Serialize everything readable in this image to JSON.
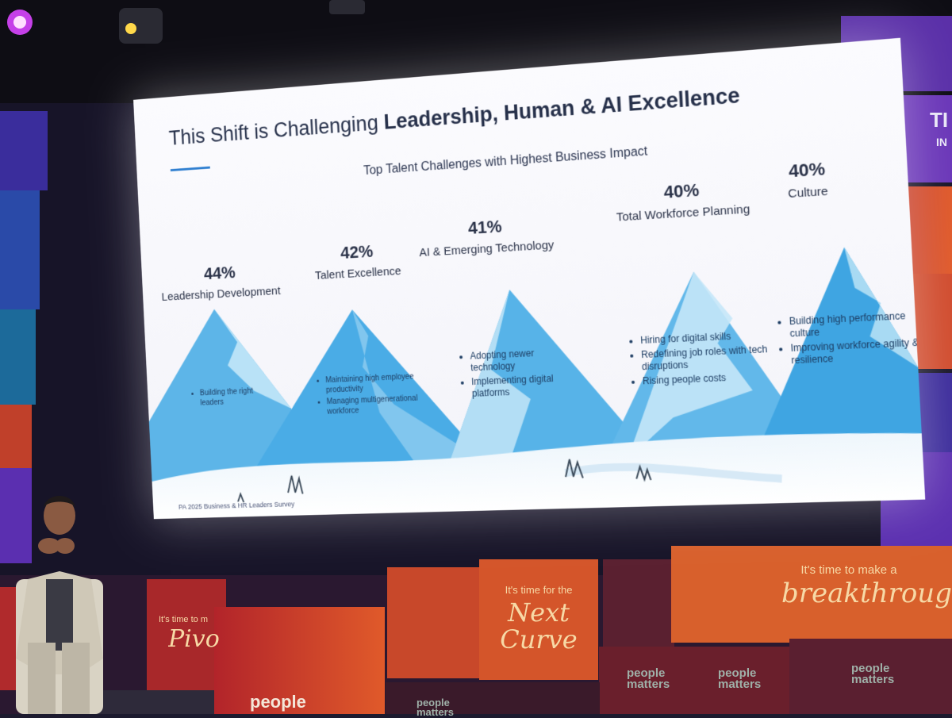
{
  "slide": {
    "title_regular": "This Shift is Challenging ",
    "title_bold": "Leadership, Human & AI Excellence",
    "subtitle": "Top Talent Challenges with Highest Business Impact",
    "source": "PA 2025 Business & HR Leaders Survey",
    "challenges": [
      {
        "percent": "44%",
        "label": "Leadership Development",
        "bullets": [
          "Building the right leaders"
        ]
      },
      {
        "percent": "42%",
        "label": "Talent Excellence",
        "bullets": [
          "Maintaining high employee productivity",
          "Managing multigenerational workforce"
        ]
      },
      {
        "percent": "41%",
        "label": "AI & Emerging Technology",
        "bullets": [
          "Adopting newer technology",
          "Implementing digital platforms"
        ]
      },
      {
        "percent": "40%",
        "label": "Total Workforce Planning",
        "bullets": [
          "Hiring for digital skills",
          "Redefining job roles with tech disruptions",
          "Rising people costs"
        ]
      },
      {
        "percent": "40%",
        "label": "Culture",
        "bullets": [
          "Building high performance culture",
          "Improving workforce agility & resilience"
        ]
      }
    ]
  },
  "stage": {
    "block_next_intro": "It's time for the",
    "block_next_script": "Next Curve",
    "block_break_intro": "It's time to make a",
    "block_break_script": "breakthrough",
    "block_pivot_intro": "It's time to m",
    "block_pivot_script": "Pivo",
    "brand": "people matters",
    "brand_partial": "people"
  },
  "colors": {
    "slide_bg": "#f6f6fb",
    "mountain_light": "#9fd3f0",
    "mountain_mid": "#5db5e8",
    "mountain_dark": "#3aa3e0",
    "accent_line": "#2f7fd0",
    "stage_red": "#c63a2a",
    "stage_orange": "#e0612a",
    "stage_purple": "#4b2a8a"
  }
}
